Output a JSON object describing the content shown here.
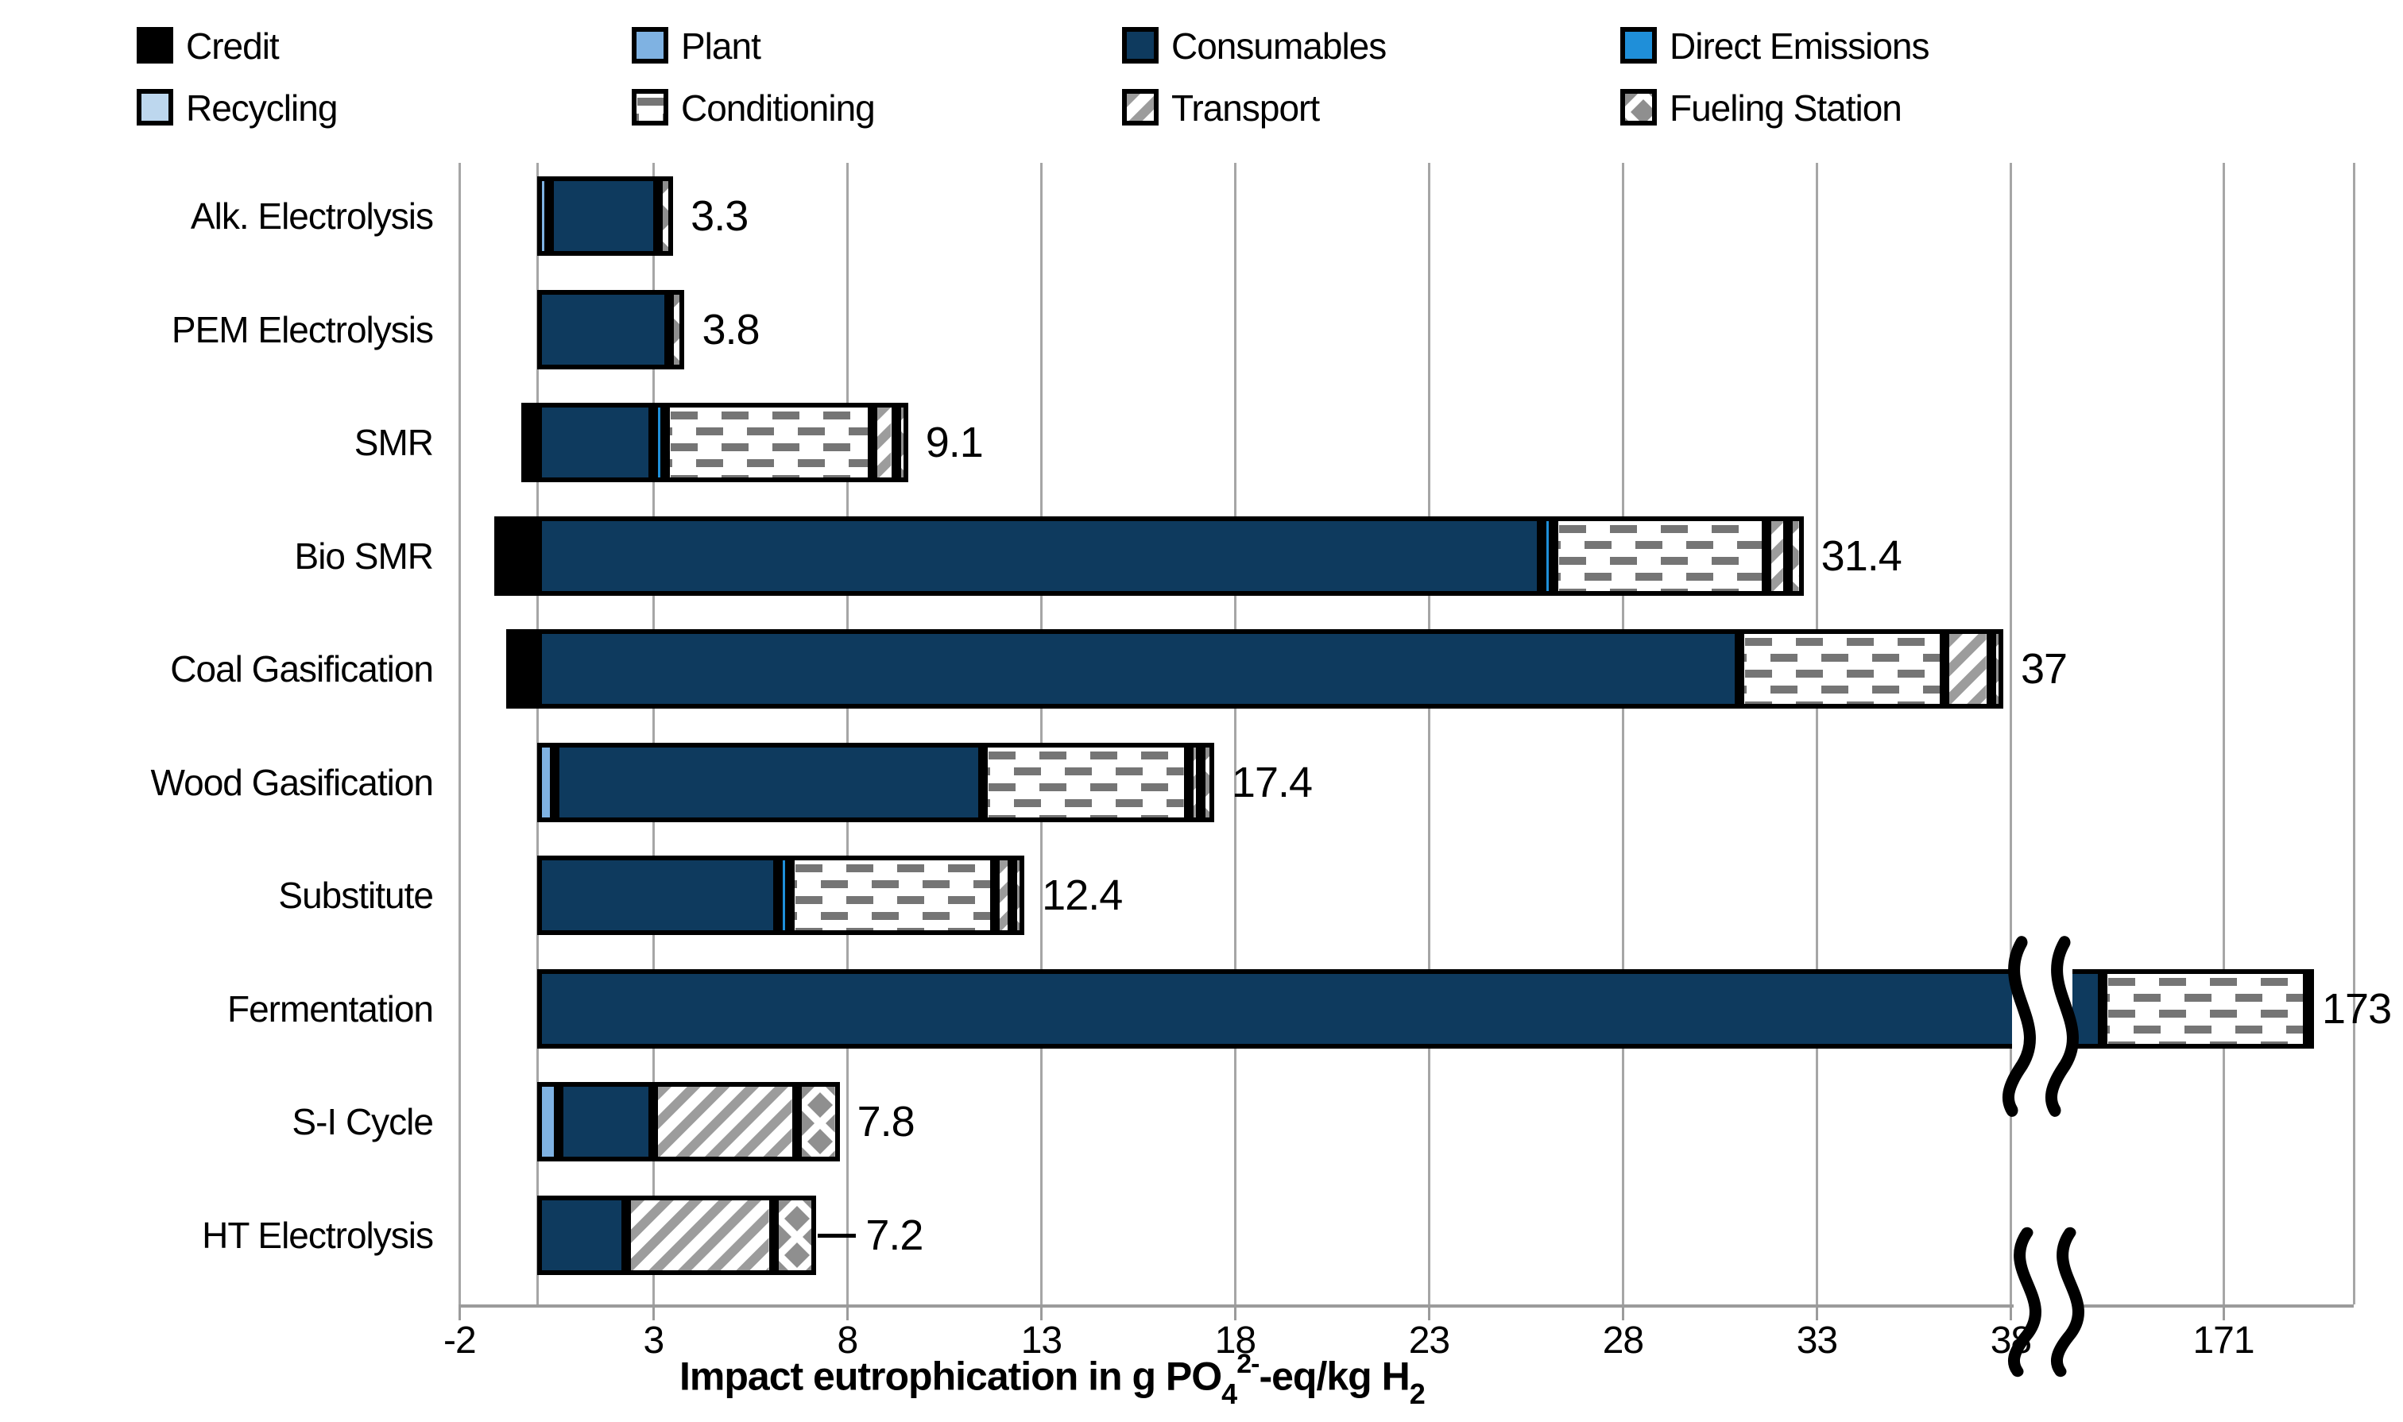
{
  "page": {
    "background": "#FFFFFF",
    "gridline_color": "#A6A6A6",
    "axis_color": "#9B9B9B"
  },
  "legend": {
    "position": "top",
    "items": [
      {
        "series": "credit",
        "label": "Credit"
      },
      {
        "series": "plant",
        "label": "Plant"
      },
      {
        "series": "consumables",
        "label": "Consumables"
      },
      {
        "series": "direct_emissions",
        "label": "Direct Emissions"
      },
      {
        "series": "recycling",
        "label": "Recycling"
      },
      {
        "series": "conditioning",
        "label": "Conditioning"
      },
      {
        "series": "transport",
        "label": "Transport"
      },
      {
        "series": "fueling_station",
        "label": "Fueling Station"
      }
    ]
  },
  "series_styles": {
    "credit": {
      "color": "#000000"
    },
    "plant": {
      "color": "#7FB2E2"
    },
    "recycling": {
      "color": "#BDD7EE"
    },
    "consumables": {
      "color": "#0E3A5E"
    },
    "direct_emissions": {
      "color": "#1F8FD9"
    },
    "conditioning": {
      "pattern": "dashes",
      "color": "#757575"
    },
    "transport": {
      "pattern": "stripes",
      "color": "#9C9C9C"
    },
    "fueling_station": {
      "pattern": "diamonds",
      "color": "#8F8F8F"
    }
  },
  "chart_data": {
    "type": "bar",
    "variant": "horizontal-stacked",
    "xlabel": "Impact eutrophication in g PO4 2- -eq/kg H2",
    "xlabel_parts": {
      "pre": "Impact eutrophication in g PO",
      "sub1": "4",
      "sup": "2-",
      "mid": "-eq/kg H",
      "sub2": "2"
    },
    "x_ticks": [
      -2,
      3,
      8,
      13,
      18,
      23,
      28,
      33,
      38,
      171
    ],
    "xlim": [
      -2,
      38
    ],
    "axis_break_between": [
      38,
      171
    ],
    "grid": "vertical",
    "legend_position": "top",
    "categories": [
      "Alk. Electrolysis",
      "PEM Electrolysis",
      "SMR",
      "Bio SMR",
      "Coal Gasification",
      "Wood Gasification",
      "Substitute",
      "Fermentation",
      "S-I Cycle",
      "HT Electrolysis"
    ],
    "rows": [
      {
        "category": "Alk. Electrolysis",
        "total_label": "3.3",
        "segments": [
          {
            "series": "plant",
            "value": 0.1
          },
          {
            "series": "consumables",
            "value": 2.8
          },
          {
            "series": "fueling_station",
            "value": 0.4
          }
        ]
      },
      {
        "category": "PEM Electrolysis",
        "total_label": "3.8",
        "segments": [
          {
            "series": "consumables",
            "value": 3.4
          },
          {
            "series": "fueling_station",
            "value": 0.4
          }
        ]
      },
      {
        "category": "SMR",
        "total_label": "9.1",
        "segments": [
          {
            "series": "credit",
            "value": -0.4
          },
          {
            "series": "consumables",
            "value": 3.0
          },
          {
            "series": "direct_emissions",
            "value": 0.25
          },
          {
            "series": "conditioning",
            "value": 5.35
          },
          {
            "series": "transport",
            "value": 0.6
          },
          {
            "series": "fueling_station",
            "value": 0.3
          }
        ]
      },
      {
        "category": "Bio SMR",
        "total_label": "31.4",
        "segments": [
          {
            "series": "credit",
            "value": -1.1
          },
          {
            "series": "consumables",
            "value": 25.9
          },
          {
            "series": "direct_emissions",
            "value": 0.15
          },
          {
            "series": "conditioning",
            "value": 5.5
          },
          {
            "series": "transport",
            "value": 0.55
          },
          {
            "series": "fueling_station",
            "value": 0.4
          }
        ]
      },
      {
        "category": "Coal Gasification",
        "total_label": "37",
        "segments": [
          {
            "series": "credit",
            "value": -0.8
          },
          {
            "series": "consumables",
            "value": 31.0
          },
          {
            "series": "conditioning",
            "value": 5.3
          },
          {
            "series": "transport",
            "value": 1.2
          },
          {
            "series": "fueling_station",
            "value": 0.3
          }
        ]
      },
      {
        "category": "Wood Gasification",
        "total_label": "17.4",
        "segments": [
          {
            "series": "plant",
            "value": 0.45
          },
          {
            "series": "consumables",
            "value": 11.05
          },
          {
            "series": "conditioning",
            "value": 5.3
          },
          {
            "series": "transport",
            "value": 0.25
          },
          {
            "series": "fueling_station",
            "value": 0.35
          }
        ]
      },
      {
        "category": "Substitute",
        "total_label": "12.4",
        "segments": [
          {
            "series": "consumables",
            "value": 6.2
          },
          {
            "series": "direct_emissions",
            "value": 0.3
          },
          {
            "series": "conditioning",
            "value": 5.3
          },
          {
            "series": "transport",
            "value": 0.45
          },
          {
            "series": "fueling_station",
            "value": 0.15
          }
        ]
      },
      {
        "category": "Fermentation",
        "total_label": "173",
        "axis_break": true,
        "segments": [
          {
            "series": "consumables",
            "value": 167
          },
          {
            "series": "conditioning",
            "value": 6
          }
        ]
      },
      {
        "category": "S-I Cycle",
        "total_label": "7.8",
        "segments": [
          {
            "series": "plant",
            "value": 0.55
          },
          {
            "series": "consumables",
            "value": 2.45
          },
          {
            "series": "transport",
            "value": 3.7
          },
          {
            "series": "fueling_station",
            "value": 1.1
          }
        ]
      },
      {
        "category": "HT Electrolysis",
        "total_label": "7.2",
        "leader_line": true,
        "segments": [
          {
            "series": "consumables",
            "value": 2.3
          },
          {
            "series": "transport",
            "value": 3.8
          },
          {
            "series": "fueling_station",
            "value": 1.1
          }
        ]
      }
    ]
  }
}
